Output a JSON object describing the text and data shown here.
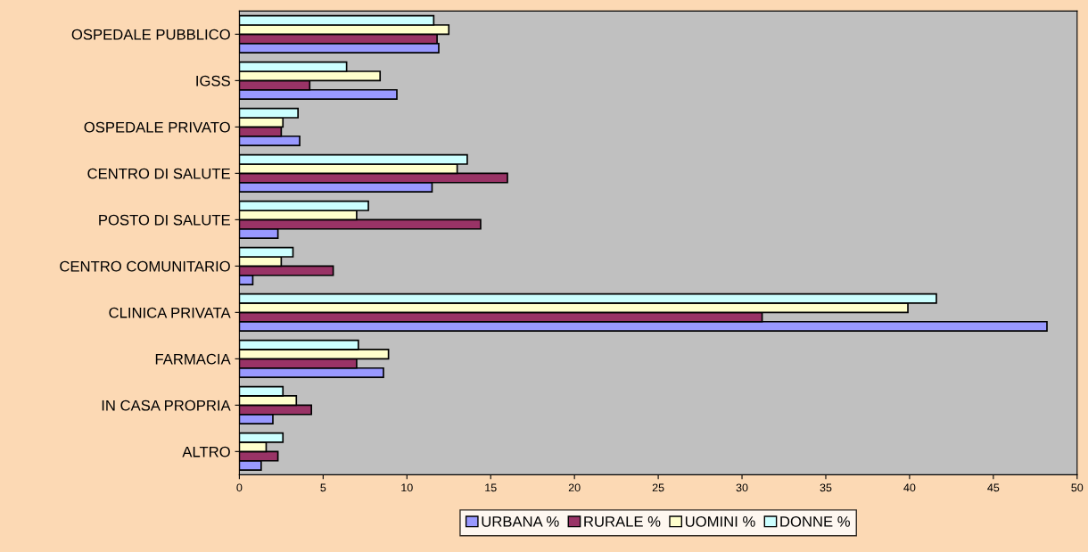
{
  "chart_data": {
    "type": "bar",
    "orientation": "horizontal",
    "categories": [
      "OSPEDALE PUBBLICO",
      "IGSS",
      "OSPEDALE PRIVATO",
      "CENTRO DI SALUTE",
      "POSTO DI SALUTE",
      "CENTRO COMUNITARIO",
      "CLINICA PRIVATA",
      "FARMACIA",
      "IN CASA PROPRIA",
      "ALTRO"
    ],
    "series": [
      {
        "name": "URBANA %",
        "color": "#9999ff",
        "values": [
          11.9,
          9.4,
          3.6,
          11.5,
          2.3,
          0.8,
          48.2,
          8.6,
          2.0,
          1.3
        ]
      },
      {
        "name": "RURALE %",
        "color": "#993366",
        "values": [
          11.8,
          4.2,
          2.5,
          16.0,
          14.4,
          5.6,
          31.2,
          7.0,
          4.3,
          2.3
        ]
      },
      {
        "name": "UOMINI %",
        "color": "#ffffcc",
        "values": [
          12.5,
          8.4,
          2.6,
          13.0,
          7.0,
          2.5,
          39.9,
          8.9,
          3.4,
          1.6
        ]
      },
      {
        "name": "DONNE %",
        "color": "#ccffff",
        "values": [
          11.6,
          6.4,
          3.5,
          13.6,
          7.7,
          3.2,
          41.6,
          7.1,
          2.6,
          2.6
        ]
      }
    ],
    "xlim": [
      0,
      50
    ],
    "xticks": [
      0,
      5,
      10,
      15,
      20,
      25,
      30,
      35,
      40,
      45,
      50
    ],
    "legend": "bottom"
  }
}
